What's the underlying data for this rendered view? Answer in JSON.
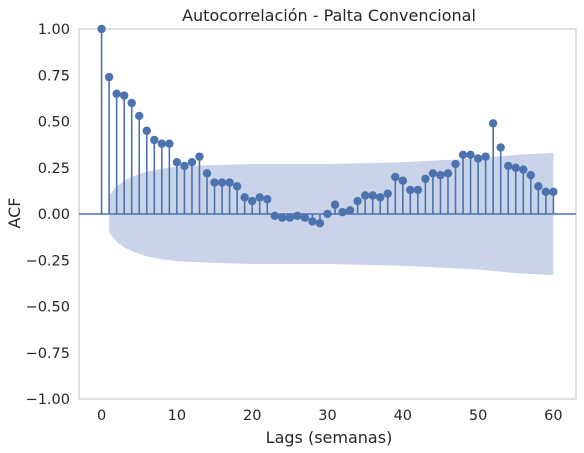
{
  "chart_data": {
    "type": "stem",
    "title": "Autocorrelación - Palta Convencional",
    "xlabel": "Lags (semanas)",
    "ylabel": "ACF",
    "xlim": [
      -3,
      63
    ],
    "ylim": [
      -1.0,
      1.0
    ],
    "xticks": [
      0,
      10,
      20,
      30,
      40,
      50,
      60
    ],
    "xtick_labels": [
      "0",
      "10",
      "20",
      "30",
      "40",
      "50",
      "60"
    ],
    "yticks": [
      1.0,
      0.75,
      0.5,
      0.25,
      0.0,
      -0.25,
      -0.5,
      -0.75,
      -1.0
    ],
    "ytick_labels": [
      "1.00",
      "0.75",
      "0.50",
      "0.25",
      "0.00",
      "−0.25",
      "−0.50",
      "−0.75",
      "−1.00"
    ],
    "grid": false,
    "lags": [
      0,
      1,
      2,
      3,
      4,
      5,
      6,
      7,
      8,
      9,
      10,
      11,
      12,
      13,
      14,
      15,
      16,
      17,
      18,
      19,
      20,
      21,
      22,
      23,
      24,
      25,
      26,
      27,
      28,
      29,
      30,
      31,
      32,
      33,
      34,
      35,
      36,
      37,
      38,
      39,
      40,
      41,
      42,
      43,
      44,
      45,
      46,
      47,
      48,
      49,
      50,
      51,
      52,
      53,
      54,
      55,
      56,
      57,
      58,
      59,
      60
    ],
    "acf": [
      1.0,
      0.74,
      0.65,
      0.64,
      0.6,
      0.53,
      0.45,
      0.4,
      0.38,
      0.38,
      0.28,
      0.26,
      0.28,
      0.31,
      0.22,
      0.17,
      0.17,
      0.17,
      0.15,
      0.09,
      0.07,
      0.09,
      0.08,
      -0.01,
      -0.02,
      -0.02,
      -0.01,
      -0.02,
      -0.04,
      -0.05,
      0.0,
      0.05,
      0.01,
      0.02,
      0.07,
      0.1,
      0.1,
      0.09,
      0.11,
      0.2,
      0.18,
      0.13,
      0.13,
      0.19,
      0.22,
      0.21,
      0.22,
      0.27,
      0.32,
      0.32,
      0.3,
      0.31,
      0.49,
      0.36,
      0.26,
      0.25,
      0.24,
      0.21,
      0.15,
      0.12,
      0.12
    ],
    "confidence_band": {
      "lags": [
        1,
        2,
        3,
        4,
        5,
        6,
        8,
        10,
        15,
        20,
        25,
        30,
        35,
        40,
        45,
        50,
        55,
        60
      ],
      "upper": [
        0.1,
        0.15,
        0.18,
        0.2,
        0.215,
        0.23,
        0.245,
        0.255,
        0.265,
        0.27,
        0.27,
        0.27,
        0.275,
        0.28,
        0.29,
        0.3,
        0.32,
        0.33
      ],
      "lower": [
        -0.1,
        -0.15,
        -0.18,
        -0.2,
        -0.215,
        -0.23,
        -0.245,
        -0.255,
        -0.265,
        -0.27,
        -0.27,
        -0.27,
        -0.275,
        -0.28,
        -0.29,
        -0.3,
        -0.32,
        -0.33
      ]
    },
    "colors": {
      "series": "#4c72b0",
      "band": "#c9d4e9",
      "axes": "#cccccc",
      "text": "#262626"
    }
  }
}
